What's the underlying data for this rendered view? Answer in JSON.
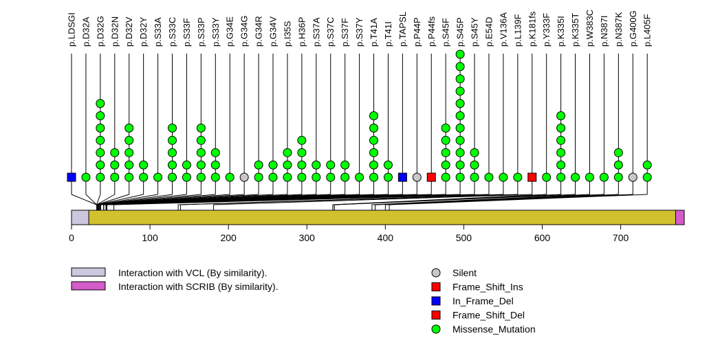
{
  "chart_data": {
    "type": "lollipop",
    "title": "",
    "protein_length": 781,
    "xaxis": {
      "ticks": [
        0,
        100,
        200,
        300,
        400,
        500,
        600,
        700
      ],
      "range": [
        0,
        781
      ]
    },
    "domains": [
      {
        "name": "Interaction with VCL (By similarity).",
        "start": 1,
        "end": 22,
        "color": "#cdc6df"
      },
      {
        "name": "Interaction with SCRIB (By similarity).",
        "start": 771,
        "end": 781,
        "color": "#d35bca"
      }
    ],
    "backbone_color": "#d2c12e",
    "mutation_types": [
      {
        "name": "Silent",
        "shape": "circle",
        "color": "#c8c8c8"
      },
      {
        "name": "Frame_Shift_Ins",
        "shape": "square",
        "color": "#ff0000"
      },
      {
        "name": "In_Frame_Del",
        "shape": "square",
        "color": "#0000ff"
      },
      {
        "name": "Frame_Shift_Del",
        "shape": "square",
        "color": "#ff0000"
      },
      {
        "name": "Missense_Mutation",
        "shape": "circle",
        "color": "#00ff00"
      }
    ],
    "mutations": [
      {
        "label": "p.LDSGI",
        "pos": 32,
        "count": 1,
        "type": "In_Frame_Del"
      },
      {
        "label": "p.D32A",
        "pos": 32,
        "count": 1,
        "type": "Missense_Mutation"
      },
      {
        "label": "p.D32G",
        "pos": 32,
        "count": 7,
        "type": "Missense_Mutation"
      },
      {
        "label": "p.D32N",
        "pos": 32,
        "count": 3,
        "type": "Missense_Mutation"
      },
      {
        "label": "p.D32V",
        "pos": 32,
        "count": 5,
        "type": "Missense_Mutation"
      },
      {
        "label": "p.D32Y",
        "pos": 32,
        "count": 2,
        "type": "Missense_Mutation"
      },
      {
        "label": "p.S33A",
        "pos": 33,
        "count": 1,
        "type": "Missense_Mutation"
      },
      {
        "label": "p.S33C",
        "pos": 33,
        "count": 5,
        "type": "Missense_Mutation"
      },
      {
        "label": "p.S33F",
        "pos": 33,
        "count": 2,
        "type": "Missense_Mutation"
      },
      {
        "label": "p.S33P",
        "pos": 33,
        "count": 5,
        "type": "Missense_Mutation"
      },
      {
        "label": "p.S33Y",
        "pos": 33,
        "count": 3,
        "type": "Missense_Mutation"
      },
      {
        "label": "p.G34E",
        "pos": 34,
        "count": 1,
        "type": "Missense_Mutation"
      },
      {
        "label": "p.G34G",
        "pos": 34,
        "count": 1,
        "type": "Silent"
      },
      {
        "label": "p.G34R",
        "pos": 34,
        "count": 2,
        "type": "Missense_Mutation"
      },
      {
        "label": "p.G34V",
        "pos": 34,
        "count": 2,
        "type": "Missense_Mutation"
      },
      {
        "label": "p.I35S",
        "pos": 35,
        "count": 3,
        "type": "Missense_Mutation"
      },
      {
        "label": "p.H36P",
        "pos": 36,
        "count": 4,
        "type": "Missense_Mutation"
      },
      {
        "label": "p.S37A",
        "pos": 37,
        "count": 2,
        "type": "Missense_Mutation"
      },
      {
        "label": "p.S37C",
        "pos": 37,
        "count": 2,
        "type": "Missense_Mutation"
      },
      {
        "label": "p.S37F",
        "pos": 37,
        "count": 2,
        "type": "Missense_Mutation"
      },
      {
        "label": "p.S37Y",
        "pos": 37,
        "count": 1,
        "type": "Missense_Mutation"
      },
      {
        "label": "p.T41A",
        "pos": 41,
        "count": 6,
        "type": "Missense_Mutation"
      },
      {
        "label": "p.T41I",
        "pos": 41,
        "count": 2,
        "type": "Missense_Mutation"
      },
      {
        "label": "p.TAPSL",
        "pos": 41,
        "count": 1,
        "type": "In_Frame_Del"
      },
      {
        "label": "p.P44P",
        "pos": 44,
        "count": 1,
        "type": "Silent"
      },
      {
        "label": "p.P44fs",
        "pos": 44,
        "count": 1,
        "type": "Frame_Shift_Ins"
      },
      {
        "label": "p.S45F",
        "pos": 45,
        "count": 5,
        "type": "Missense_Mutation"
      },
      {
        "label": "p.S45P",
        "pos": 45,
        "count": 11,
        "type": "Missense_Mutation"
      },
      {
        "label": "p.S45Y",
        "pos": 45,
        "count": 3,
        "type": "Missense_Mutation"
      },
      {
        "label": "p.E54D",
        "pos": 54,
        "count": 1,
        "type": "Missense_Mutation"
      },
      {
        "label": "p.V136A",
        "pos": 136,
        "count": 1,
        "type": "Missense_Mutation"
      },
      {
        "label": "p.L139F",
        "pos": 139,
        "count": 1,
        "type": "Missense_Mutation"
      },
      {
        "label": "p.K181fs",
        "pos": 181,
        "count": 1,
        "type": "Frame_Shift_Del"
      },
      {
        "label": "p.Y333F",
        "pos": 333,
        "count": 1,
        "type": "Missense_Mutation"
      },
      {
        "label": "p.K335I",
        "pos": 335,
        "count": 6,
        "type": "Missense_Mutation"
      },
      {
        "label": "p.K335T",
        "pos": 335,
        "count": 1,
        "type": "Missense_Mutation"
      },
      {
        "label": "p.W383C",
        "pos": 383,
        "count": 1,
        "type": "Missense_Mutation"
      },
      {
        "label": "p.N387I",
        "pos": 387,
        "count": 1,
        "type": "Missense_Mutation"
      },
      {
        "label": "p.N387K",
        "pos": 387,
        "count": 3,
        "type": "Missense_Mutation"
      },
      {
        "label": "p.G400G",
        "pos": 400,
        "count": 1,
        "type": "Silent"
      },
      {
        "label": "p.L405F",
        "pos": 405,
        "count": 2,
        "type": "Missense_Mutation"
      }
    ]
  }
}
